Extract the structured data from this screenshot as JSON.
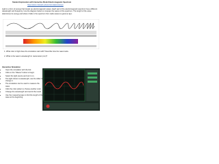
{
  "header": {
    "title": "Student Exploration with Interactive Model Electromagnetic Spectrum",
    "link": "https://phet.colorado.edu/en/simulation/waves"
  },
  "intro": "Light is a form of energy that travels as electromagnetic waves. Each part of the electromagnetic spectrum has a different wavelength and frequency. Use the diagram below to compare the waves of the spectrum. The length of the wave determines its energy and where it falls in the spectrum from radio waves to gamma rays.",
  "questions": [
    "What color of light does the simulation start with? Describe how the wave looks.",
    "What is the wave's wavelength in nanometers (nm)?"
  ],
  "section": {
    "heading": "Interactive Simulation",
    "steps": [
      "Open the simulation with the link.",
      "Click on the \"Waves\" button to begin.",
      "Select the light source and turn it on.",
      "The light shown is wavelength; use the slider to change it.",
      "The simulation can be used to measure the wave.",
      "Click the color picker to choose another color.",
      "Change the wavelength and record the result.",
      "Use the measuring tape to find the length of the wave at the beginning."
    ]
  }
}
